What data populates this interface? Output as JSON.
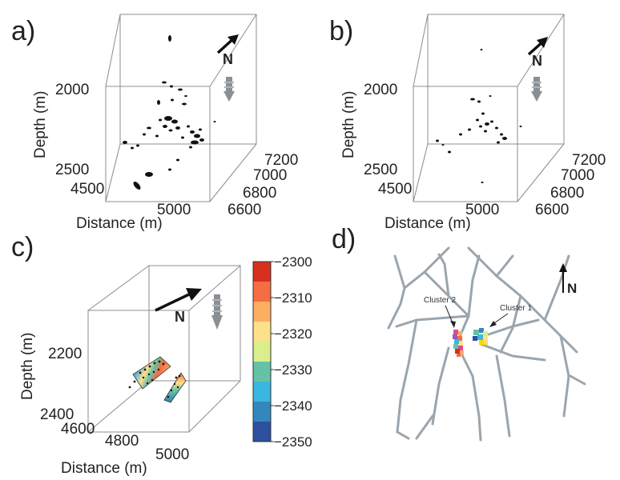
{
  "figure": {
    "panels": [
      {
        "id": "a",
        "letter": "a)",
        "north_label": "N",
        "depth_ticks": [
          "2000",
          "2500"
        ],
        "depth_axis_title": "Depth (m)",
        "x_ticks": [
          "4500",
          "5000"
        ],
        "x_axis_title": "Distance (m)",
        "y_ticks": [
          "7200",
          "7000",
          "6800",
          "6600"
        ]
      },
      {
        "id": "b",
        "letter": "b)",
        "north_label": "N",
        "depth_ticks": [
          "2000",
          "2500"
        ],
        "depth_axis_title": "Depth (m)",
        "x_ticks": [
          "4500",
          "5000"
        ],
        "x_axis_title": "Distance (m)",
        "y_ticks": [
          "7200",
          "7000",
          "6800",
          "6600"
        ]
      },
      {
        "id": "c",
        "letter": "c)",
        "north_label": "N",
        "depth_ticks": [
          "2200",
          "2400"
        ],
        "depth_axis_title": "Depth (m)",
        "x_ticks": [
          "4600",
          "4800",
          "5000"
        ],
        "x_axis_title": "Distance (m)",
        "colorbar": {
          "ticks": [
            "−2300",
            "−2310",
            "−2320",
            "−2330",
            "−2340",
            "−2350"
          ],
          "min": -2350,
          "max": -2300,
          "colors": [
            "#d7301f",
            "#f46d43",
            "#fdae61",
            "#fee08b",
            "#d9ef8b",
            "#66c2a5",
            "#3ab7e0",
            "#3288bd",
            "#2c4fa0"
          ]
        }
      },
      {
        "id": "d",
        "letter": "d)",
        "north_label": "N",
        "cluster_labels": [
          "Cluster 2",
          "Cluster 1"
        ]
      }
    ]
  }
}
